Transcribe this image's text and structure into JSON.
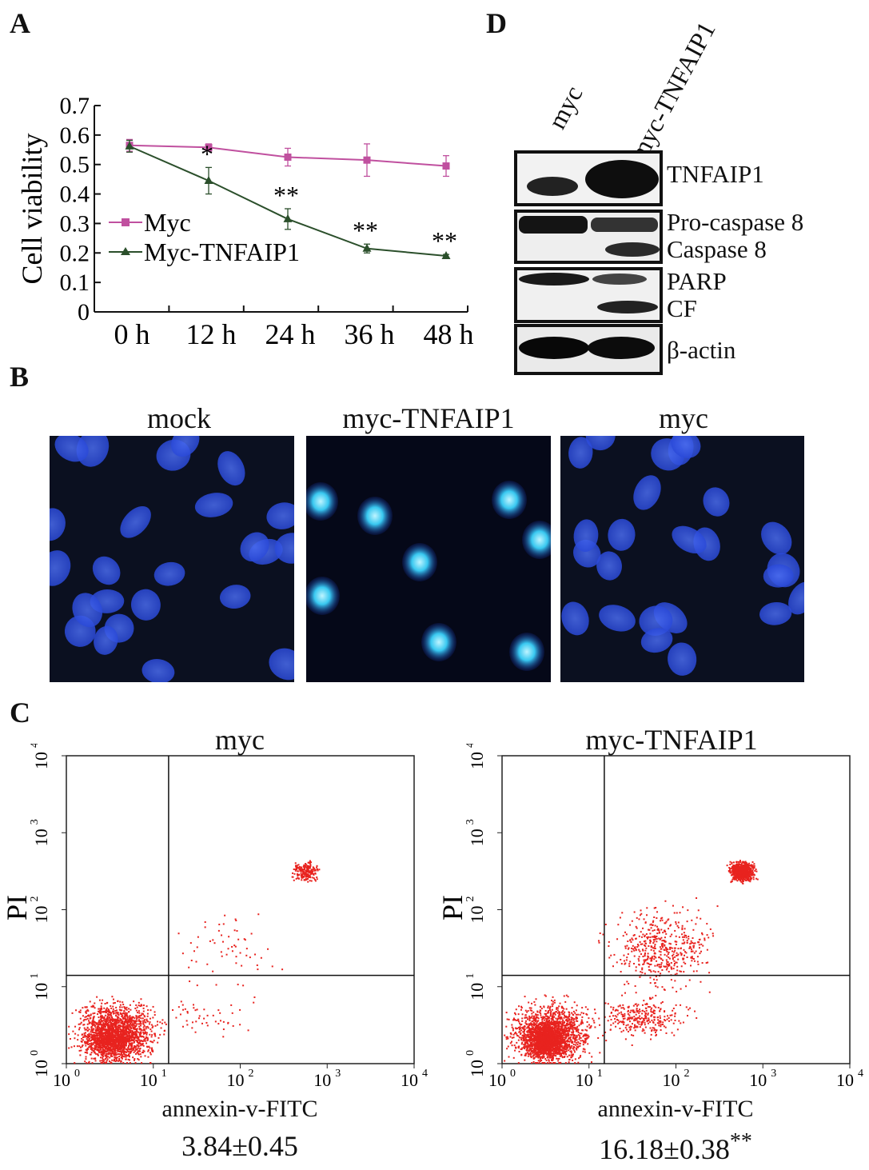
{
  "panels": {
    "a": "A",
    "b": "B",
    "c": "C",
    "d": "D"
  },
  "chart_data": [
    {
      "type": "line",
      "ylabel": "Cell viability",
      "categories": [
        "0 h",
        "12 h",
        "24 h",
        "36 h",
        "48 h"
      ],
      "yticks": [
        "0",
        "0.1",
        "0.2",
        "0.3",
        "0.4",
        "0.5",
        "0.6",
        "0.7"
      ],
      "ylim": [
        0,
        0.7
      ],
      "legend_position": "left-middle",
      "series": [
        {
          "name": "Myc",
          "color": "#c0509f",
          "marker": "square",
          "values": [
            0.565,
            0.558,
            0.525,
            0.515,
            0.495
          ],
          "errors": [
            0.02,
            0.012,
            0.03,
            0.055,
            0.035
          ],
          "annotations": [
            "",
            "",
            "",
            "",
            ""
          ]
        },
        {
          "name": "Myc-TNFAIP1",
          "color": "#2b4f2b",
          "marker": "triangle",
          "values": [
            0.562,
            0.445,
            0.315,
            0.215,
            0.19
          ],
          "errors": [
            0.02,
            0.045,
            0.035,
            0.015,
            0.005
          ],
          "annotations": [
            "",
            "*",
            "**",
            "**",
            "**"
          ]
        }
      ]
    },
    {
      "type": "scatter",
      "title": "myc",
      "xlabel": "annexin-v-FITC",
      "ylabel": "PI",
      "xscale": "log",
      "yscale": "log",
      "xlim": [
        1,
        10000
      ],
      "ylim": [
        1,
        10000
      ],
      "quadrant_gate": {
        "x": 15,
        "y": 14
      },
      "point_color": "#e8231f",
      "stat": "3.84±0.45",
      "stat_sup": ""
    },
    {
      "type": "scatter",
      "title": "myc-TNFAIP1",
      "xlabel": "annexin-v-FITC",
      "ylabel": "PI",
      "xscale": "log",
      "yscale": "log",
      "xlim": [
        1,
        10000
      ],
      "ylim": [
        1,
        10000
      ],
      "quadrant_gate": {
        "x": 15,
        "y": 14
      },
      "point_color": "#e8231f",
      "stat": "16.18±0.38",
      "stat_sup": "**"
    }
  ],
  "western_blot": {
    "lanes": [
      "myc",
      "myc-TNFAIP1"
    ],
    "bands": [
      {
        "labels": [
          "TNFAIP1"
        ]
      },
      {
        "labels": [
          "Pro-caspase 8",
          "Caspase 8"
        ]
      },
      {
        "labels": [
          "PARP",
          "CF"
        ]
      },
      {
        "labels": [
          "β-actin"
        ]
      }
    ]
  },
  "microscopy": {
    "titles": [
      "mock",
      "myc-TNFAIP1",
      "myc"
    ],
    "nucleus_color": "#2a49d8",
    "condensed_color": "#38c8f0"
  },
  "flow_ticks": [
    "10",
    "10",
    "10",
    "10",
    "10"
  ],
  "flow_tick_exps": [
    "0",
    "1",
    "2",
    "3",
    "4"
  ]
}
